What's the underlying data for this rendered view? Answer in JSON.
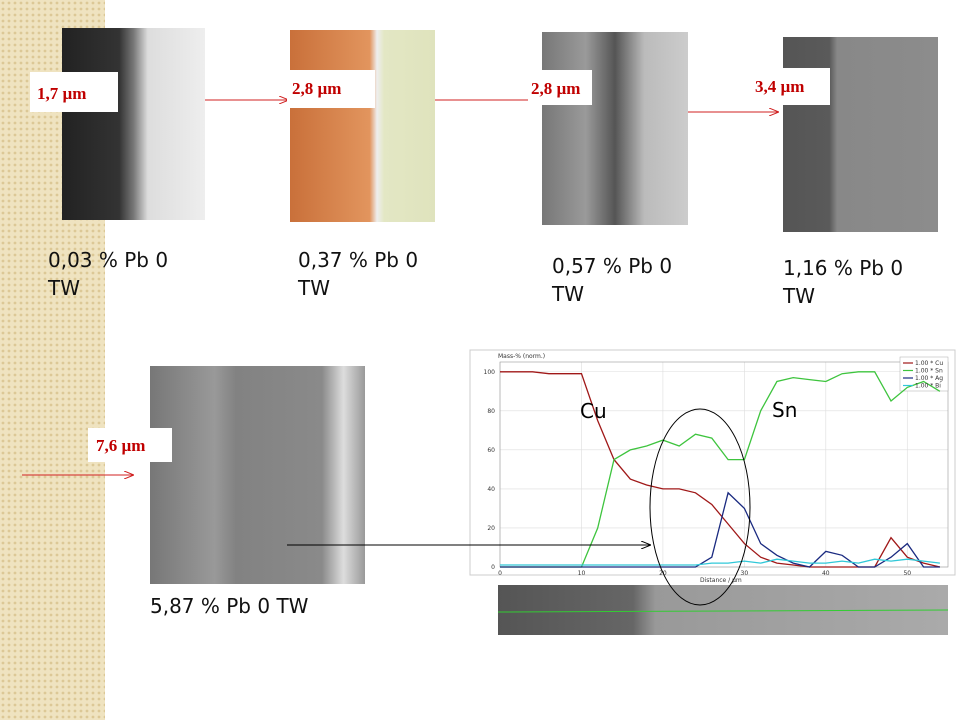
{
  "panels": [
    {
      "thickness": "1,7 µm",
      "caption": "0,03 % Pb 0 TW"
    },
    {
      "thickness": "2,8 µm",
      "caption": "0,37 % Pb 0 TW"
    },
    {
      "thickness": "2,8 µm",
      "caption": "0,57 % Pb 0 TW"
    },
    {
      "thickness": "3,4 µm",
      "caption": "1,16 % Pb 0 TW"
    },
    {
      "thickness": "7,6 µm",
      "caption": "5,87 % Pb 0 TW"
    }
  ],
  "linescan": {
    "type": "line",
    "ylabel": "Mass-% (norm.)",
    "xlabel": "Distance / µm",
    "xlim": [
      0,
      55
    ],
    "ylim": [
      0,
      105
    ],
    "xticks": [
      0,
      10,
      20,
      30,
      40,
      50
    ],
    "yticks": [
      0,
      20,
      40,
      60,
      80,
      100
    ],
    "grid": true,
    "x": [
      0,
      2,
      4,
      6,
      8,
      10,
      12,
      14,
      16,
      18,
      20,
      22,
      24,
      26,
      28,
      30,
      32,
      34,
      36,
      38,
      40,
      42,
      44,
      46,
      48,
      50,
      52,
      54
    ],
    "series": [
      {
        "name": "1.00 * Cu",
        "color": "#a01818",
        "values": [
          100,
          100,
          100,
          99,
          99,
          99,
          75,
          55,
          45,
          42,
          40,
          40,
          38,
          32,
          22,
          12,
          5,
          2,
          1,
          0,
          0,
          0,
          0,
          0,
          15,
          5,
          2,
          0
        ]
      },
      {
        "name": "1.00 * Sn",
        "color": "#3ec43e",
        "values": [
          0,
          0,
          0,
          0,
          0,
          0,
          20,
          55,
          60,
          62,
          65,
          62,
          68,
          66,
          55,
          55,
          80,
          95,
          97,
          96,
          95,
          99,
          100,
          100,
          85,
          92,
          95,
          90
        ]
      },
      {
        "name": "1.00 * Ag",
        "color": "#1a2a80",
        "values": [
          0,
          0,
          0,
          0,
          0,
          0,
          0,
          0,
          0,
          0,
          0,
          0,
          0,
          5,
          38,
          30,
          12,
          6,
          2,
          0,
          8,
          6,
          0,
          0,
          5,
          12,
          0,
          0
        ]
      },
      {
        "name": "1.00 * Bi",
        "color": "#30c8d8",
        "values": [
          1,
          1,
          1,
          1,
          1,
          1,
          1,
          1,
          1,
          1,
          1,
          1,
          1,
          2,
          2,
          3,
          2,
          4,
          3,
          2,
          2,
          3,
          2,
          4,
          3,
          4,
          3,
          2
        ]
      }
    ],
    "annotations": [
      "Cu",
      "Sn"
    ]
  }
}
